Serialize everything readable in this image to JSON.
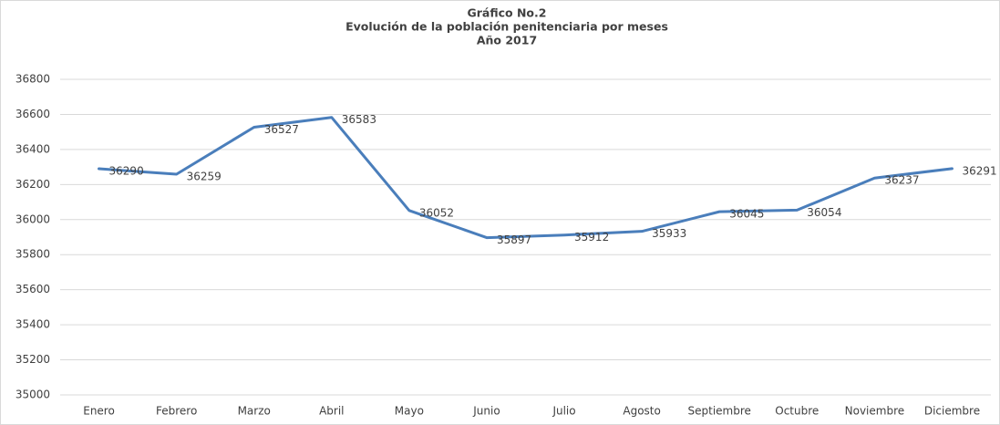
{
  "chart_data": {
    "type": "line",
    "title": [
      "Gráfico No.2",
      "Evolución de la población penitenciaria por meses",
      "Año 2017"
    ],
    "categories": [
      "Enero",
      "Febrero",
      "Marzo",
      "Abril",
      "Mayo",
      "Junio",
      "Julio",
      "Agosto",
      "Septiembre",
      "Octubre",
      "Noviembre",
      "Diciembre"
    ],
    "values": [
      36290,
      36259,
      36527,
      36583,
      36052,
      35897,
      35912,
      35933,
      36045,
      36054,
      36237,
      36291
    ],
    "color": "#4a7ebb",
    "ylim": [
      35000,
      36800
    ],
    "yticks": [
      35000,
      35200,
      35400,
      35600,
      35800,
      36000,
      36200,
      36400,
      36600,
      36800
    ],
    "grid": true
  }
}
